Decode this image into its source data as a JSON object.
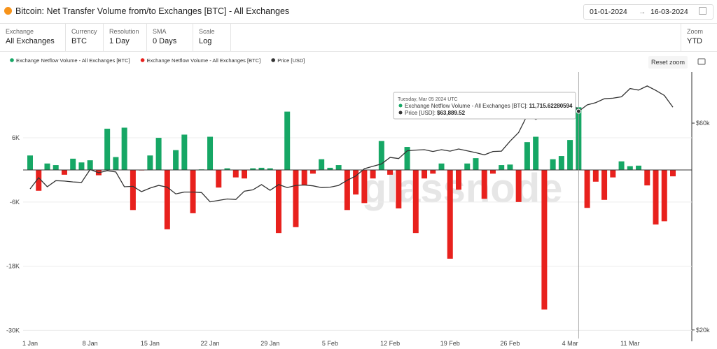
{
  "header": {
    "title": "Bitcoin: Net Transfer Volume from/to Exchanges [BTC] - All Exchanges",
    "date_from": "01-01-2024",
    "date_to": "16-03-2024"
  },
  "controls": [
    {
      "label": "Exchange",
      "value": "All Exchanges"
    },
    {
      "label": "Currency",
      "value": "BTC"
    },
    {
      "label": "Resolution",
      "value": "1 Day"
    },
    {
      "label": "SMA",
      "value": "0 Days"
    },
    {
      "label": "Scale",
      "value": "Log"
    }
  ],
  "zoom": {
    "label": "Zoom",
    "value": "YTD"
  },
  "reset_zoom": "Reset zoom",
  "watermark": "glassnode",
  "chart_data": {
    "type": "bar",
    "x": [
      "2024-01-01",
      "2024-01-02",
      "2024-01-03",
      "2024-01-04",
      "2024-01-05",
      "2024-01-06",
      "2024-01-07",
      "2024-01-08",
      "2024-01-09",
      "2024-01-10",
      "2024-01-11",
      "2024-01-12",
      "2024-01-13",
      "2024-01-14",
      "2024-01-15",
      "2024-01-16",
      "2024-01-17",
      "2024-01-18",
      "2024-01-19",
      "2024-01-20",
      "2024-01-21",
      "2024-01-22",
      "2024-01-23",
      "2024-01-24",
      "2024-01-25",
      "2024-01-26",
      "2024-01-27",
      "2024-01-28",
      "2024-01-29",
      "2024-01-30",
      "2024-01-31",
      "2024-02-01",
      "2024-02-02",
      "2024-02-03",
      "2024-02-04",
      "2024-02-05",
      "2024-02-06",
      "2024-02-07",
      "2024-02-08",
      "2024-02-09",
      "2024-02-10",
      "2024-02-11",
      "2024-02-12",
      "2024-02-13",
      "2024-02-14",
      "2024-02-15",
      "2024-02-16",
      "2024-02-17",
      "2024-02-18",
      "2024-02-19",
      "2024-02-20",
      "2024-02-21",
      "2024-02-22",
      "2024-02-23",
      "2024-02-24",
      "2024-02-25",
      "2024-02-26",
      "2024-02-27",
      "2024-02-28",
      "2024-02-29",
      "2024-03-01",
      "2024-03-02",
      "2024-03-03",
      "2024-03-04",
      "2024-03-05",
      "2024-03-06",
      "2024-03-07",
      "2024-03-08",
      "2024-03-09",
      "2024-03-10",
      "2024-03-11",
      "2024-03-12",
      "2024-03-13",
      "2024-03-14",
      "2024-03-15",
      "2024-03-16"
    ],
    "series": [
      {
        "name": "Exchange Netflow Volume - All Exchanges [BTC]",
        "color": "#16a765",
        "negative_color": "#e8211d",
        "values": [
          2700,
          -3900,
          1200,
          900,
          -900,
          2100,
          1400,
          1800,
          -1000,
          7700,
          2400,
          7900,
          -7500,
          -100,
          2700,
          6000,
          -11100,
          3700,
          6600,
          -8100,
          100,
          6200,
          -3300,
          300,
          -1400,
          -1600,
          300,
          400,
          300,
          -11800,
          10900,
          -10700,
          -2900,
          -700,
          2000,
          400,
          900,
          -7500,
          -4600,
          -6200,
          -1600,
          5400,
          -900,
          -7200,
          4300,
          -11800,
          -1600,
          -700,
          1200,
          -16600,
          -3700,
          1200,
          2200,
          -5400,
          -700,
          900,
          1000,
          -6000,
          5200,
          6200,
          -26100,
          2000,
          2600,
          5600,
          11715.62280594,
          -7100,
          -2200,
          -5600,
          -1400,
          1600,
          700,
          800,
          -2900,
          -10200,
          -9600,
          -1200
        ]
      },
      {
        "name": "Price [USD]",
        "color": "#333333",
        "axis": "y2",
        "type": "line",
        "values": [
          42300,
          44900,
          42800,
          44200,
          44100,
          43900,
          43800,
          46900,
          46100,
          46600,
          46300,
          42800,
          42900,
          41700,
          42500,
          43100,
          42700,
          41200,
          41600,
          41600,
          41500,
          39500,
          39800,
          40100,
          40000,
          41800,
          42100,
          43300,
          42000,
          43300,
          42600,
          43100,
          43200,
          43000,
          42600,
          42700,
          43100,
          44300,
          45300,
          47100,
          47700,
          48300,
          50000,
          49700,
          51800,
          52000,
          52100,
          51600,
          52100,
          51700,
          52300,
          51800,
          51300,
          50700,
          51600,
          51700,
          54500,
          57100,
          62500,
          61200,
          62400,
          62000,
          63100,
          68300,
          63889.52,
          66100,
          66900,
          68300,
          68500,
          69000,
          72100,
          71500,
          73100,
          71400,
          69500,
          65300
        ]
      }
    ],
    "ylim": [
      -31000,
      18300
    ],
    "yticks": [
      {
        "value": 6000,
        "label": "6K"
      },
      {
        "value": -6000,
        "label": "-6K"
      },
      {
        "value": -18000,
        "label": "-18K"
      },
      {
        "value": -30000,
        "label": "-30K"
      }
    ],
    "y2lim": [
      19400,
      78700
    ],
    "y2log": true,
    "y2ticks": [
      {
        "value": 60000,
        "label": "$60k"
      },
      {
        "value": 20000,
        "label": "$20k"
      }
    ],
    "xticks": [
      {
        "value": "2024-01-01",
        "label": "1 Jan"
      },
      {
        "value": "2024-01-08",
        "label": "8 Jan"
      },
      {
        "value": "2024-01-15",
        "label": "15 Jan"
      },
      {
        "value": "2024-01-22",
        "label": "22 Jan"
      },
      {
        "value": "2024-01-29",
        "label": "29 Jan"
      },
      {
        "value": "2024-02-05",
        "label": "5 Feb"
      },
      {
        "value": "2024-02-12",
        "label": "12 Feb"
      },
      {
        "value": "2024-02-19",
        "label": "19 Feb"
      },
      {
        "value": "2024-02-26",
        "label": "26 Feb"
      },
      {
        "value": "2024-03-04",
        "label": "4 Mar"
      },
      {
        "value": "2024-03-11",
        "label": "11 Mar"
      }
    ],
    "grid": true,
    "tooltip": {
      "title": "Tuesday, Mar 05 2024 UTC",
      "x": "2024-03-05",
      "labels": [
        "Exchange Netflow Volume - All Exchanges [BTC]: ",
        "Price [USD]: "
      ],
      "value_labels": [
        "11,715.62280594",
        "$63,889.52"
      ]
    }
  }
}
